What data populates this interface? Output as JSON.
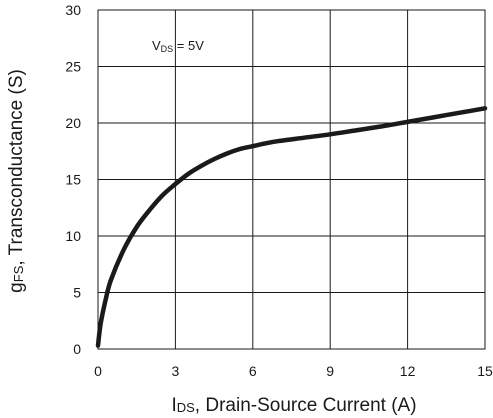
{
  "chart_data": {
    "type": "line",
    "title": "",
    "xlabel": {
      "symbol_main": "I",
      "symbol_sub": "DS",
      "text": ", Drain-Source Current (A)"
    },
    "ylabel": {
      "symbol_main": "g",
      "symbol_sub": "FS",
      "text": ", Transconductance (S)"
    },
    "xlim": [
      0,
      15
    ],
    "ylim": [
      0,
      30
    ],
    "xticks": [
      0,
      3,
      6,
      9,
      12,
      15
    ],
    "yticks": [
      0,
      5,
      10,
      15,
      20,
      25,
      30
    ],
    "grid": true,
    "annotation": {
      "symbol_main": "V",
      "symbol_sub": "DS",
      "text": " = 5V"
    },
    "series": [
      {
        "color": "#1a1a1a",
        "x": [
          0,
          0.1,
          0.3,
          0.5,
          1,
          1.5,
          2,
          2.5,
          3,
          3.5,
          4,
          4.5,
          5,
          5.5,
          6,
          6.5,
          7,
          8,
          9,
          10,
          11,
          12,
          13,
          14,
          15
        ],
        "y": [
          0.3,
          2.2,
          4.4,
          6.1,
          8.8,
          10.8,
          12.3,
          13.6,
          14.6,
          15.5,
          16.2,
          16.8,
          17.3,
          17.7,
          17.95,
          18.2,
          18.4,
          18.7,
          19.0,
          19.35,
          19.7,
          20.1,
          20.5,
          20.9,
          21.3
        ]
      }
    ]
  }
}
